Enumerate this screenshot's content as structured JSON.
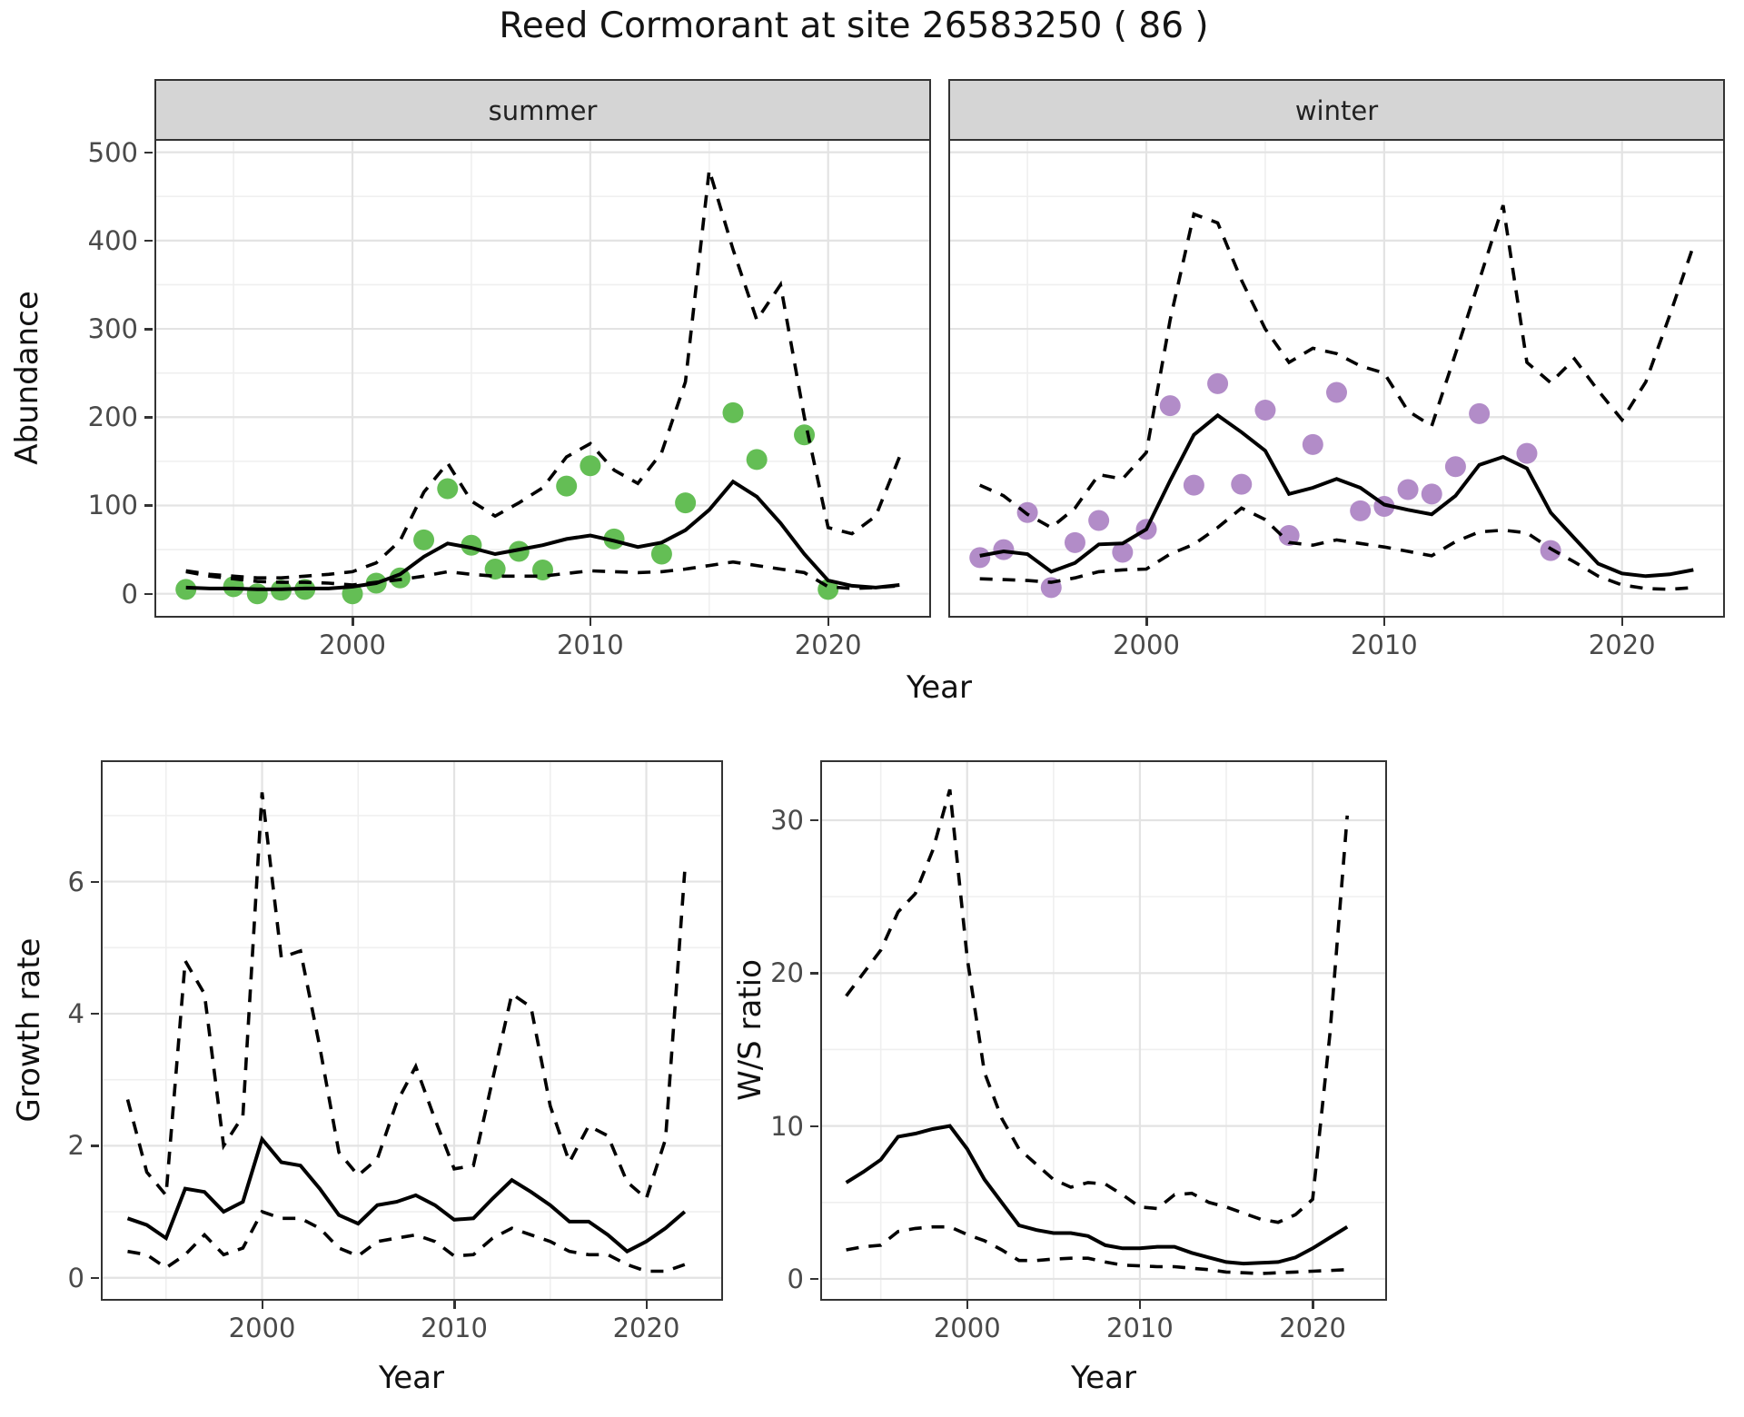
{
  "title": "Reed Cormorant at site 26583250 ( 86 )",
  "colors": {
    "observed_summer": "#64be55",
    "observed_winter": "#b28cc8",
    "line": "#000000",
    "strip_fill": "#d5d5d5",
    "panel_border": "#333333",
    "grid_major": "#e3e3e3",
    "grid_minor": "#efefef",
    "tick_text": "#4a4a4a"
  },
  "axis_titles": {
    "abundance": "Abundance",
    "year": "Year",
    "growth": "Growth rate",
    "ws": "W/S ratio"
  },
  "chart_data": [
    {
      "id": "abundance-summer",
      "type": "line",
      "facet_label": "summer",
      "xlabel": "Year",
      "ylabel": "Abundance",
      "xlim": [
        1991.75,
        2024.25
      ],
      "ylim": [
        -25,
        513
      ],
      "x_ticks": [
        2000,
        2010,
        2020
      ],
      "x_minor": [
        1995,
        2005,
        2015
      ],
      "y_ticks": [
        0,
        100,
        200,
        300,
        400,
        500
      ],
      "y_minor": [
        50,
        150,
        250,
        350,
        450
      ],
      "grid": true,
      "show_y_labels": true,
      "series": [
        {
          "name": "fit",
          "style": "solid",
          "x": [
            1993,
            1994,
            1995,
            1996,
            1997,
            1998,
            1999,
            2000,
            2001,
            2002,
            2003,
            2004,
            2005,
            2006,
            2007,
            2008,
            2009,
            2010,
            2011,
            2012,
            2013,
            2014,
            2015,
            2016,
            2017,
            2018,
            2019,
            2020,
            2021,
            2022,
            2023
          ],
          "y": [
            7,
            6,
            6,
            5,
            5,
            6,
            6,
            8,
            12,
            22,
            42,
            57,
            52,
            45,
            50,
            55,
            62,
            66,
            60,
            53,
            58,
            72,
            95,
            127,
            110,
            80,
            45,
            15,
            9,
            7,
            10
          ]
        },
        {
          "name": "upper_ci",
          "style": "dashed",
          "x": [
            1993,
            1994,
            1995,
            1996,
            1997,
            1998,
            1999,
            2000,
            2001,
            2002,
            2003,
            2004,
            2005,
            2006,
            2007,
            2008,
            2009,
            2010,
            2011,
            2012,
            2013,
            2014,
            2015,
            2016,
            2017,
            2018,
            2019,
            2020,
            2021,
            2022,
            2023
          ],
          "y": [
            26,
            22,
            20,
            18,
            18,
            20,
            22,
            25,
            35,
            60,
            115,
            148,
            105,
            88,
            103,
            120,
            155,
            170,
            140,
            125,
            160,
            240,
            480,
            390,
            310,
            350,
            200,
            75,
            68,
            88,
            155
          ]
        },
        {
          "name": "lower_ci",
          "style": "dashed",
          "x": [
            1993,
            1994,
            1995,
            1996,
            1997,
            1998,
            1999,
            2000,
            2001,
            2002,
            2003,
            2004,
            2005,
            2006,
            2007,
            2008,
            2009,
            2010,
            2011,
            2012,
            2013,
            2014,
            2015,
            2016,
            2017,
            2018,
            2019,
            2020,
            2021,
            2022,
            2023
          ],
          "y": [
            25,
            20,
            17,
            14,
            13,
            13,
            12,
            10,
            13,
            16,
            20,
            25,
            22,
            20,
            20,
            20,
            23,
            26,
            25,
            24,
            25,
            28,
            32,
            36,
            32,
            28,
            24,
            8,
            6,
            7,
            9
          ]
        }
      ],
      "points": {
        "name": "observed-counts",
        "color_key": "observed_summer",
        "x": [
          1993,
          1995,
          1996,
          1997,
          1998,
          2000,
          2001,
          2002,
          2003,
          2004,
          2005,
          2006,
          2007,
          2008,
          2009,
          2010,
          2011,
          2013,
          2014,
          2016,
          2017,
          2019,
          2020
        ],
        "y": [
          5,
          8,
          0,
          4,
          5,
          0,
          12,
          18,
          61,
          119,
          55,
          28,
          48,
          27,
          122,
          145,
          62,
          45,
          103,
          205,
          152,
          180,
          5
        ]
      }
    },
    {
      "id": "abundance-winter",
      "type": "line",
      "facet_label": "winter",
      "xlabel": "Year",
      "ylabel": "Abundance",
      "xlim": [
        1991.75,
        2024.25
      ],
      "ylim": [
        -25,
        513
      ],
      "x_ticks": [
        2000,
        2010,
        2020
      ],
      "x_minor": [
        1995,
        2005,
        2015
      ],
      "y_ticks": [
        0,
        100,
        200,
        300,
        400,
        500
      ],
      "y_minor": [
        50,
        150,
        250,
        350,
        450
      ],
      "grid": true,
      "show_y_labels": false,
      "series": [
        {
          "name": "fit",
          "style": "solid",
          "x": [
            1993,
            1994,
            1995,
            1996,
            1997,
            1998,
            1999,
            2000,
            2001,
            2002,
            2003,
            2004,
            2005,
            2006,
            2007,
            2008,
            2009,
            2010,
            2011,
            2012,
            2013,
            2014,
            2015,
            2016,
            2017,
            2018,
            2019,
            2020,
            2021,
            2022,
            2023
          ],
          "y": [
            43,
            48,
            45,
            25,
            35,
            56,
            57,
            73,
            128,
            180,
            202,
            183,
            162,
            113,
            120,
            130,
            120,
            101,
            95,
            90,
            111,
            146,
            155,
            142,
            92,
            63,
            34,
            23,
            20,
            22,
            27
          ]
        },
        {
          "name": "upper_ci",
          "style": "dashed",
          "x": [
            1993,
            1994,
            1995,
            1996,
            1997,
            1998,
            1999,
            2000,
            2001,
            2002,
            2003,
            2004,
            2005,
            2006,
            2007,
            2008,
            2009,
            2010,
            2011,
            2012,
            2013,
            2014,
            2015,
            2016,
            2017,
            2018,
            2019,
            2020,
            2021,
            2022,
            2023
          ],
          "y": [
            123,
            111,
            90,
            75,
            97,
            135,
            130,
            160,
            310,
            430,
            420,
            355,
            300,
            262,
            278,
            272,
            258,
            250,
            207,
            190,
            272,
            355,
            440,
            262,
            239,
            266,
            230,
            197,
            240,
            315,
            394
          ]
        },
        {
          "name": "lower_ci",
          "style": "dashed",
          "x": [
            1993,
            1994,
            1995,
            1996,
            1997,
            1998,
            1999,
            2000,
            2001,
            2002,
            2003,
            2004,
            2005,
            2006,
            2007,
            2008,
            2009,
            2010,
            2011,
            2012,
            2013,
            2014,
            2015,
            2016,
            2017,
            2018,
            2019,
            2020,
            2021,
            2022,
            2023
          ],
          "y": [
            17,
            16,
            15,
            13,
            18,
            25,
            27,
            28,
            45,
            56,
            75,
            97,
            84,
            58,
            55,
            61,
            57,
            53,
            48,
            43,
            59,
            70,
            72,
            69,
            51,
            36,
            20,
            10,
            6,
            5,
            7
          ]
        }
      ],
      "points": {
        "name": "observed-counts",
        "color_key": "observed_winter",
        "x": [
          1993,
          1994,
          1995,
          1996,
          1997,
          1998,
          1999,
          2000,
          2001,
          2002,
          2003,
          2004,
          2005,
          2006,
          2007,
          2008,
          2009,
          2010,
          2011,
          2012,
          2013,
          2014,
          2016,
          2017
        ],
        "y": [
          41,
          50,
          92,
          7,
          58,
          83,
          47,
          73,
          213,
          123,
          238,
          124,
          208,
          66,
          169,
          228,
          94,
          99,
          118,
          113,
          144,
          204,
          159,
          49
        ]
      }
    },
    {
      "id": "growth-rate",
      "type": "line",
      "facet_label": "",
      "xlabel": "Year",
      "ylabel": "Growth rate",
      "xlim": [
        1991.7,
        2023.9
      ],
      "ylim": [
        -0.32,
        7.81
      ],
      "x_ticks": [
        2000,
        2010,
        2020
      ],
      "x_minor": [
        1995,
        2005,
        2015
      ],
      "y_ticks": [
        0,
        2,
        4,
        6
      ],
      "y_minor": [
        1,
        3,
        5,
        7
      ],
      "grid": true,
      "show_y_labels": true,
      "series": [
        {
          "name": "fit",
          "style": "solid",
          "x": [
            1993,
            1994,
            1995,
            1996,
            1997,
            1998,
            1999,
            2000,
            2001,
            2002,
            2003,
            2004,
            2005,
            2006,
            2007,
            2008,
            2009,
            2010,
            2011,
            2012,
            2013,
            2014,
            2015,
            2016,
            2017,
            2018,
            2019,
            2020,
            2021,
            2022
          ],
          "y": [
            0.9,
            0.8,
            0.6,
            1.35,
            1.3,
            1.0,
            1.15,
            2.1,
            1.75,
            1.7,
            1.35,
            0.95,
            0.82,
            1.1,
            1.15,
            1.25,
            1.1,
            0.88,
            0.9,
            1.2,
            1.48,
            1.3,
            1.1,
            0.85,
            0.85,
            0.65,
            0.4,
            0.55,
            0.75,
            1.0
          ]
        },
        {
          "name": "upper_ci",
          "style": "dashed",
          "x": [
            1993,
            1994,
            1995,
            1996,
            1997,
            1998,
            1999,
            2000,
            2001,
            2002,
            2003,
            2004,
            2005,
            2006,
            2007,
            2008,
            2009,
            2010,
            2011,
            2012,
            2013,
            2014,
            2015,
            2016,
            2017,
            2018,
            2019,
            2020,
            2021,
            2022
          ],
          "y": [
            2.7,
            1.6,
            1.25,
            4.8,
            4.3,
            2.0,
            2.45,
            7.35,
            4.85,
            4.95,
            3.5,
            1.9,
            1.55,
            1.8,
            2.65,
            3.2,
            2.4,
            1.65,
            1.7,
            3.0,
            4.3,
            4.1,
            2.6,
            1.75,
            2.3,
            2.15,
            1.45,
            1.2,
            2.1,
            6.15
          ]
        },
        {
          "name": "lower_ci",
          "style": "dashed",
          "x": [
            1993,
            1994,
            1995,
            1996,
            1997,
            1998,
            1999,
            2000,
            2001,
            2002,
            2003,
            2004,
            2005,
            2006,
            2007,
            2008,
            2009,
            2010,
            2011,
            2012,
            2013,
            2014,
            2015,
            2016,
            2017,
            2018,
            2019,
            2020,
            2021,
            2022
          ],
          "y": [
            0.4,
            0.35,
            0.15,
            0.35,
            0.65,
            0.35,
            0.45,
            1.0,
            0.9,
            0.9,
            0.75,
            0.45,
            0.33,
            0.55,
            0.6,
            0.65,
            0.55,
            0.33,
            0.35,
            0.6,
            0.75,
            0.65,
            0.55,
            0.4,
            0.35,
            0.35,
            0.2,
            0.1,
            0.1,
            0.2
          ]
        }
      ],
      "points": null
    },
    {
      "id": "ws-ratio",
      "type": "line",
      "facet_label": "",
      "xlabel": "Year",
      "ylabel": "W/S ratio",
      "xlim": [
        1991.6,
        2024.2
      ],
      "ylim": [
        -1.31,
        33.8
      ],
      "x_ticks": [
        2000,
        2010,
        2020
      ],
      "x_minor": [
        1995,
        2005,
        2015
      ],
      "y_ticks": [
        0,
        10,
        20,
        30
      ],
      "y_minor": [
        5,
        15,
        25
      ],
      "grid": true,
      "show_y_labels": true,
      "series": [
        {
          "name": "fit",
          "style": "solid",
          "x": [
            1993,
            1994,
            1995,
            1996,
            1997,
            1998,
            1999,
            2000,
            2001,
            2002,
            2003,
            2004,
            2005,
            2006,
            2007,
            2008,
            2009,
            2010,
            2011,
            2012,
            2013,
            2014,
            2015,
            2016,
            2017,
            2018,
            2019,
            2020,
            2021,
            2022
          ],
          "y": [
            6.3,
            7.0,
            7.8,
            9.3,
            9.5,
            9.8,
            10.0,
            8.5,
            6.5,
            5.0,
            3.5,
            3.2,
            3.0,
            3.0,
            2.8,
            2.2,
            2.0,
            2.0,
            2.1,
            2.1,
            1.7,
            1.4,
            1.1,
            1.0,
            1.05,
            1.1,
            1.4,
            2.0,
            2.7,
            3.4
          ]
        },
        {
          "name": "upper_ci",
          "style": "dashed",
          "x": [
            1993,
            1994,
            1995,
            1996,
            1997,
            1998,
            1999,
            2000,
            2001,
            2002,
            2003,
            2004,
            2005,
            2006,
            2007,
            2008,
            2009,
            2010,
            2011,
            2012,
            2013,
            2014,
            2015,
            2016,
            2017,
            2018,
            2019,
            2020,
            2021,
            2022
          ],
          "y": [
            18.5,
            20.0,
            21.5,
            24.0,
            25.2,
            28.0,
            32.0,
            21.0,
            13.5,
            10.5,
            8.5,
            7.5,
            6.5,
            6.0,
            6.3,
            6.2,
            5.5,
            4.7,
            4.6,
            5.5,
            5.6,
            5.0,
            4.7,
            4.3,
            3.9,
            3.7,
            4.2,
            5.2,
            16.0,
            30.3
          ]
        },
        {
          "name": "lower_ci",
          "style": "dashed",
          "x": [
            1993,
            1994,
            1995,
            1996,
            1997,
            1998,
            1999,
            2000,
            2001,
            2002,
            2003,
            2004,
            2005,
            2006,
            2007,
            2008,
            2009,
            2010,
            2011,
            2012,
            2013,
            2014,
            2015,
            2016,
            2017,
            2018,
            2019,
            2020,
            2021,
            2022
          ],
          "y": [
            1.9,
            2.1,
            2.2,
            3.1,
            3.3,
            3.4,
            3.4,
            2.9,
            2.5,
            1.9,
            1.2,
            1.2,
            1.3,
            1.35,
            1.35,
            1.1,
            0.9,
            0.85,
            0.8,
            0.8,
            0.7,
            0.6,
            0.45,
            0.4,
            0.35,
            0.4,
            0.45,
            0.5,
            0.55,
            0.6
          ]
        }
      ],
      "points": null
    }
  ]
}
